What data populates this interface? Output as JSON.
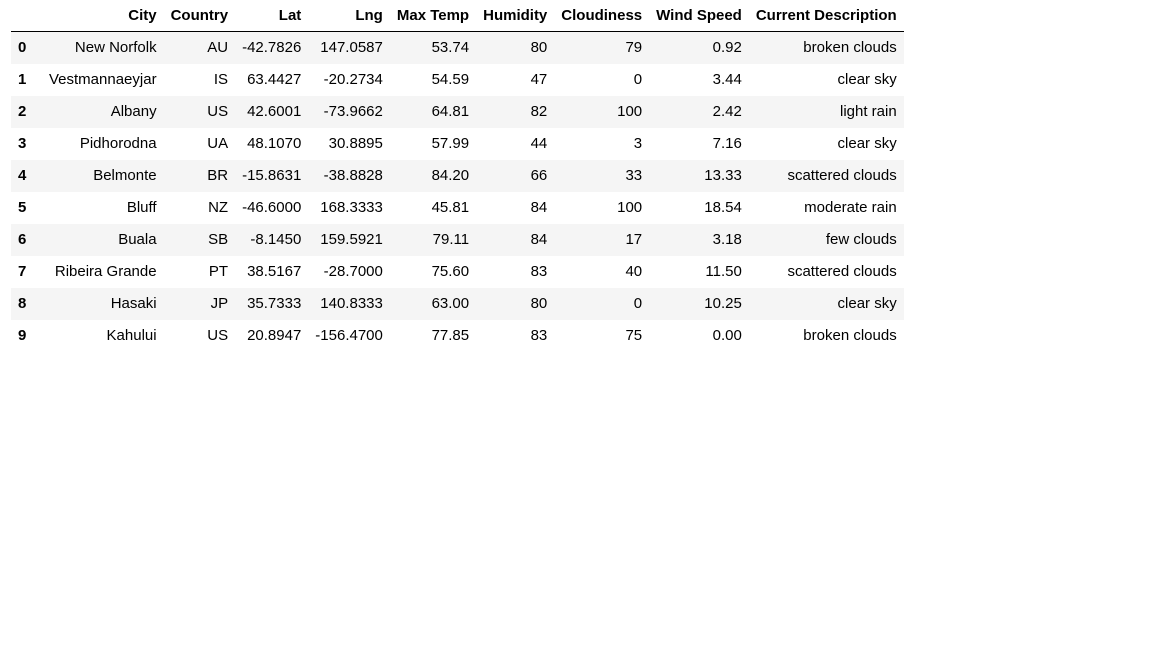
{
  "table": {
    "columns": [
      "City",
      "Country",
      "Lat",
      "Lng",
      "Max Temp",
      "Humidity",
      "Cloudiness",
      "Wind Speed",
      "Current Description"
    ],
    "index": [
      "0",
      "1",
      "2",
      "3",
      "4",
      "5",
      "6",
      "7",
      "8",
      "9"
    ],
    "rows": [
      [
        "New Norfolk",
        "AU",
        "-42.7826",
        "147.0587",
        "53.74",
        "80",
        "79",
        "0.92",
        "broken clouds"
      ],
      [
        "Vestmannaeyjar",
        "IS",
        "63.4427",
        "-20.2734",
        "54.59",
        "47",
        "0",
        "3.44",
        "clear sky"
      ],
      [
        "Albany",
        "US",
        "42.6001",
        "-73.9662",
        "64.81",
        "82",
        "100",
        "2.42",
        "light rain"
      ],
      [
        "Pidhorodna",
        "UA",
        "48.1070",
        "30.8895",
        "57.99",
        "44",
        "3",
        "7.16",
        "clear sky"
      ],
      [
        "Belmonte",
        "BR",
        "-15.8631",
        "-38.8828",
        "84.20",
        "66",
        "33",
        "13.33",
        "scattered clouds"
      ],
      [
        "Bluff",
        "NZ",
        "-46.6000",
        "168.3333",
        "45.81",
        "84",
        "100",
        "18.54",
        "moderate rain"
      ],
      [
        "Buala",
        "SB",
        "-8.1450",
        "159.5921",
        "79.11",
        "84",
        "17",
        "3.18",
        "few clouds"
      ],
      [
        "Ribeira Grande",
        "PT",
        "38.5167",
        "-28.7000",
        "75.60",
        "83",
        "40",
        "11.50",
        "scattered clouds"
      ],
      [
        "Hasaki",
        "JP",
        "35.7333",
        "140.8333",
        "63.00",
        "80",
        "0",
        "10.25",
        "clear sky"
      ],
      [
        "Kahului",
        "US",
        "20.8947",
        "-156.4700",
        "77.85",
        "83",
        "75",
        "0.00",
        "broken clouds"
      ]
    ]
  }
}
